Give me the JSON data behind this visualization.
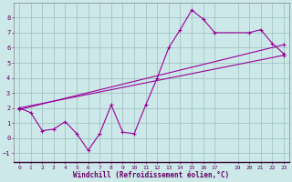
{
  "xlabel": "Windchill (Refroidissement éolien,°C)",
  "bg_color": "#cce8e8",
  "grid_color": "#9bbfbf",
  "line_color": "#990099",
  "axis_label_color": "#660066",
  "tick_color": "#660066",
  "xlim": [
    -0.5,
    23.5
  ],
  "ylim": [
    -1.6,
    9.0
  ],
  "xticks": [
    0,
    1,
    2,
    3,
    4,
    5,
    6,
    7,
    8,
    9,
    10,
    11,
    12,
    13,
    14,
    15,
    16,
    17,
    19,
    20,
    21,
    22,
    23
  ],
  "yticks": [
    -1,
    0,
    1,
    2,
    3,
    4,
    5,
    6,
    7,
    8
  ],
  "line1_x": [
    0,
    1,
    2,
    3,
    4,
    5,
    6,
    7,
    8,
    9,
    10,
    11,
    12,
    13,
    14,
    15,
    16,
    17,
    20,
    21,
    22,
    23
  ],
  "line1_y": [
    2.0,
    1.7,
    0.5,
    0.6,
    1.1,
    0.3,
    -0.8,
    0.3,
    2.2,
    0.4,
    0.3,
    2.2,
    4.0,
    6.0,
    7.2,
    8.5,
    7.9,
    7.0,
    7.0,
    7.2,
    6.3,
    5.6
  ],
  "line2_x": [
    0,
    23
  ],
  "line2_y": [
    1.9,
    6.2
  ],
  "line3_x": [
    0,
    23
  ],
  "line3_y": [
    2.0,
    5.5
  ],
  "marker_size": 2.5,
  "linewidth": 0.8
}
